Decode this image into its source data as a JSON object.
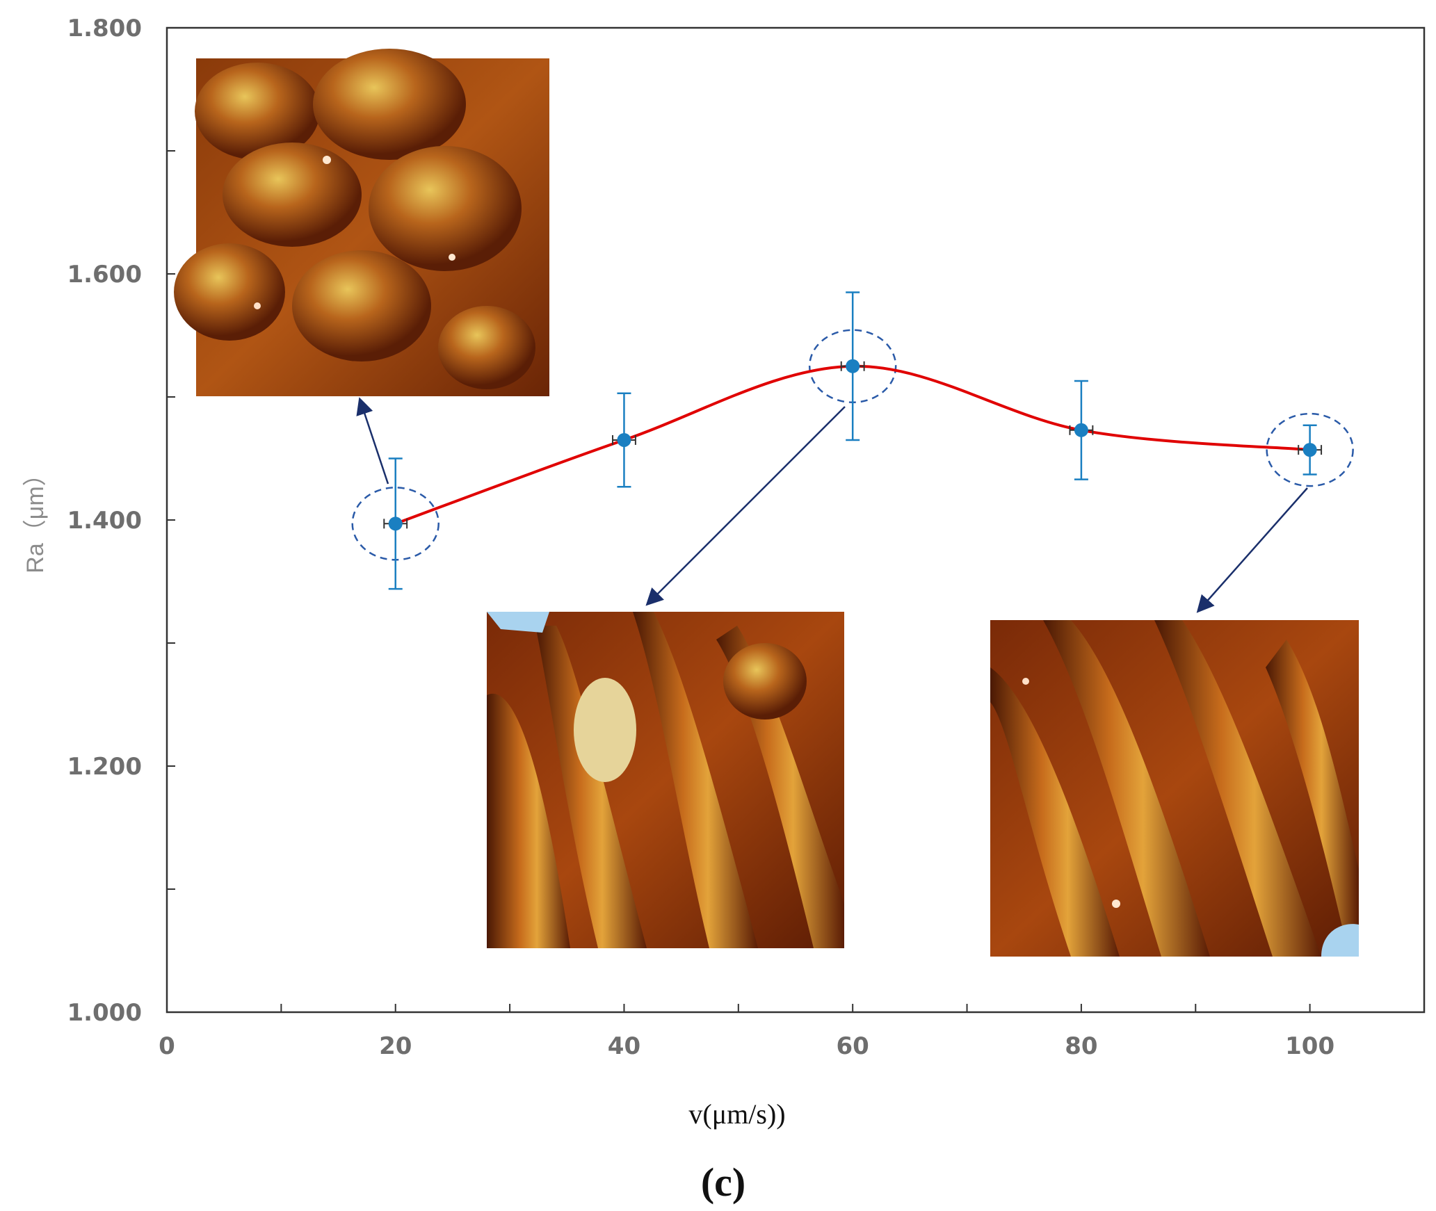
{
  "chart_data": {
    "type": "line",
    "title": "",
    "panel_label": "(c)",
    "xlabel": "v(μm/s))",
    "ylabel": "Ra（μm）",
    "xlim": [
      0,
      110
    ],
    "ylim": [
      1.0,
      1.8
    ],
    "xticks": [
      0,
      20,
      40,
      60,
      80,
      100
    ],
    "xtick_labels": [
      "0",
      "20",
      "40",
      "60",
      "80",
      "100"
    ],
    "yticks": [
      1.0,
      1.2,
      1.4,
      1.6,
      1.8
    ],
    "ytick_labels": [
      "1.000",
      "1.200",
      "1.400",
      "1.600",
      "1.800"
    ],
    "grid": false,
    "series": [
      {
        "name": "Ra",
        "x": [
          20,
          40,
          60,
          80,
          100
        ],
        "y": [
          1.397,
          1.465,
          1.525,
          1.473,
          1.457
        ],
        "y_err": [
          0.053,
          0.038,
          0.06,
          0.04,
          0.02
        ],
        "x_err": [
          1.0,
          1.0,
          1.0,
          1.0,
          1.0
        ],
        "line_color": "#e00000",
        "marker_color": "#1a7fc1",
        "smooth": true
      }
    ],
    "annotations": [
      {
        "type": "highlight-circle",
        "x": 20,
        "y": 1.397,
        "inset": "AFM surface at 20 μm/s"
      },
      {
        "type": "highlight-circle",
        "x": 60,
        "y": 1.525,
        "inset": "AFM surface at 60 μm/s"
      },
      {
        "type": "highlight-circle",
        "x": 100,
        "y": 1.457,
        "inset": "AFM surface at 100 μm/s"
      }
    ]
  },
  "colors": {
    "axis": "#333333",
    "line": "#e00000",
    "marker": "#1a7fc1",
    "dashed_circle": "#2a5aa8",
    "arrow": "#1a2f6b"
  }
}
